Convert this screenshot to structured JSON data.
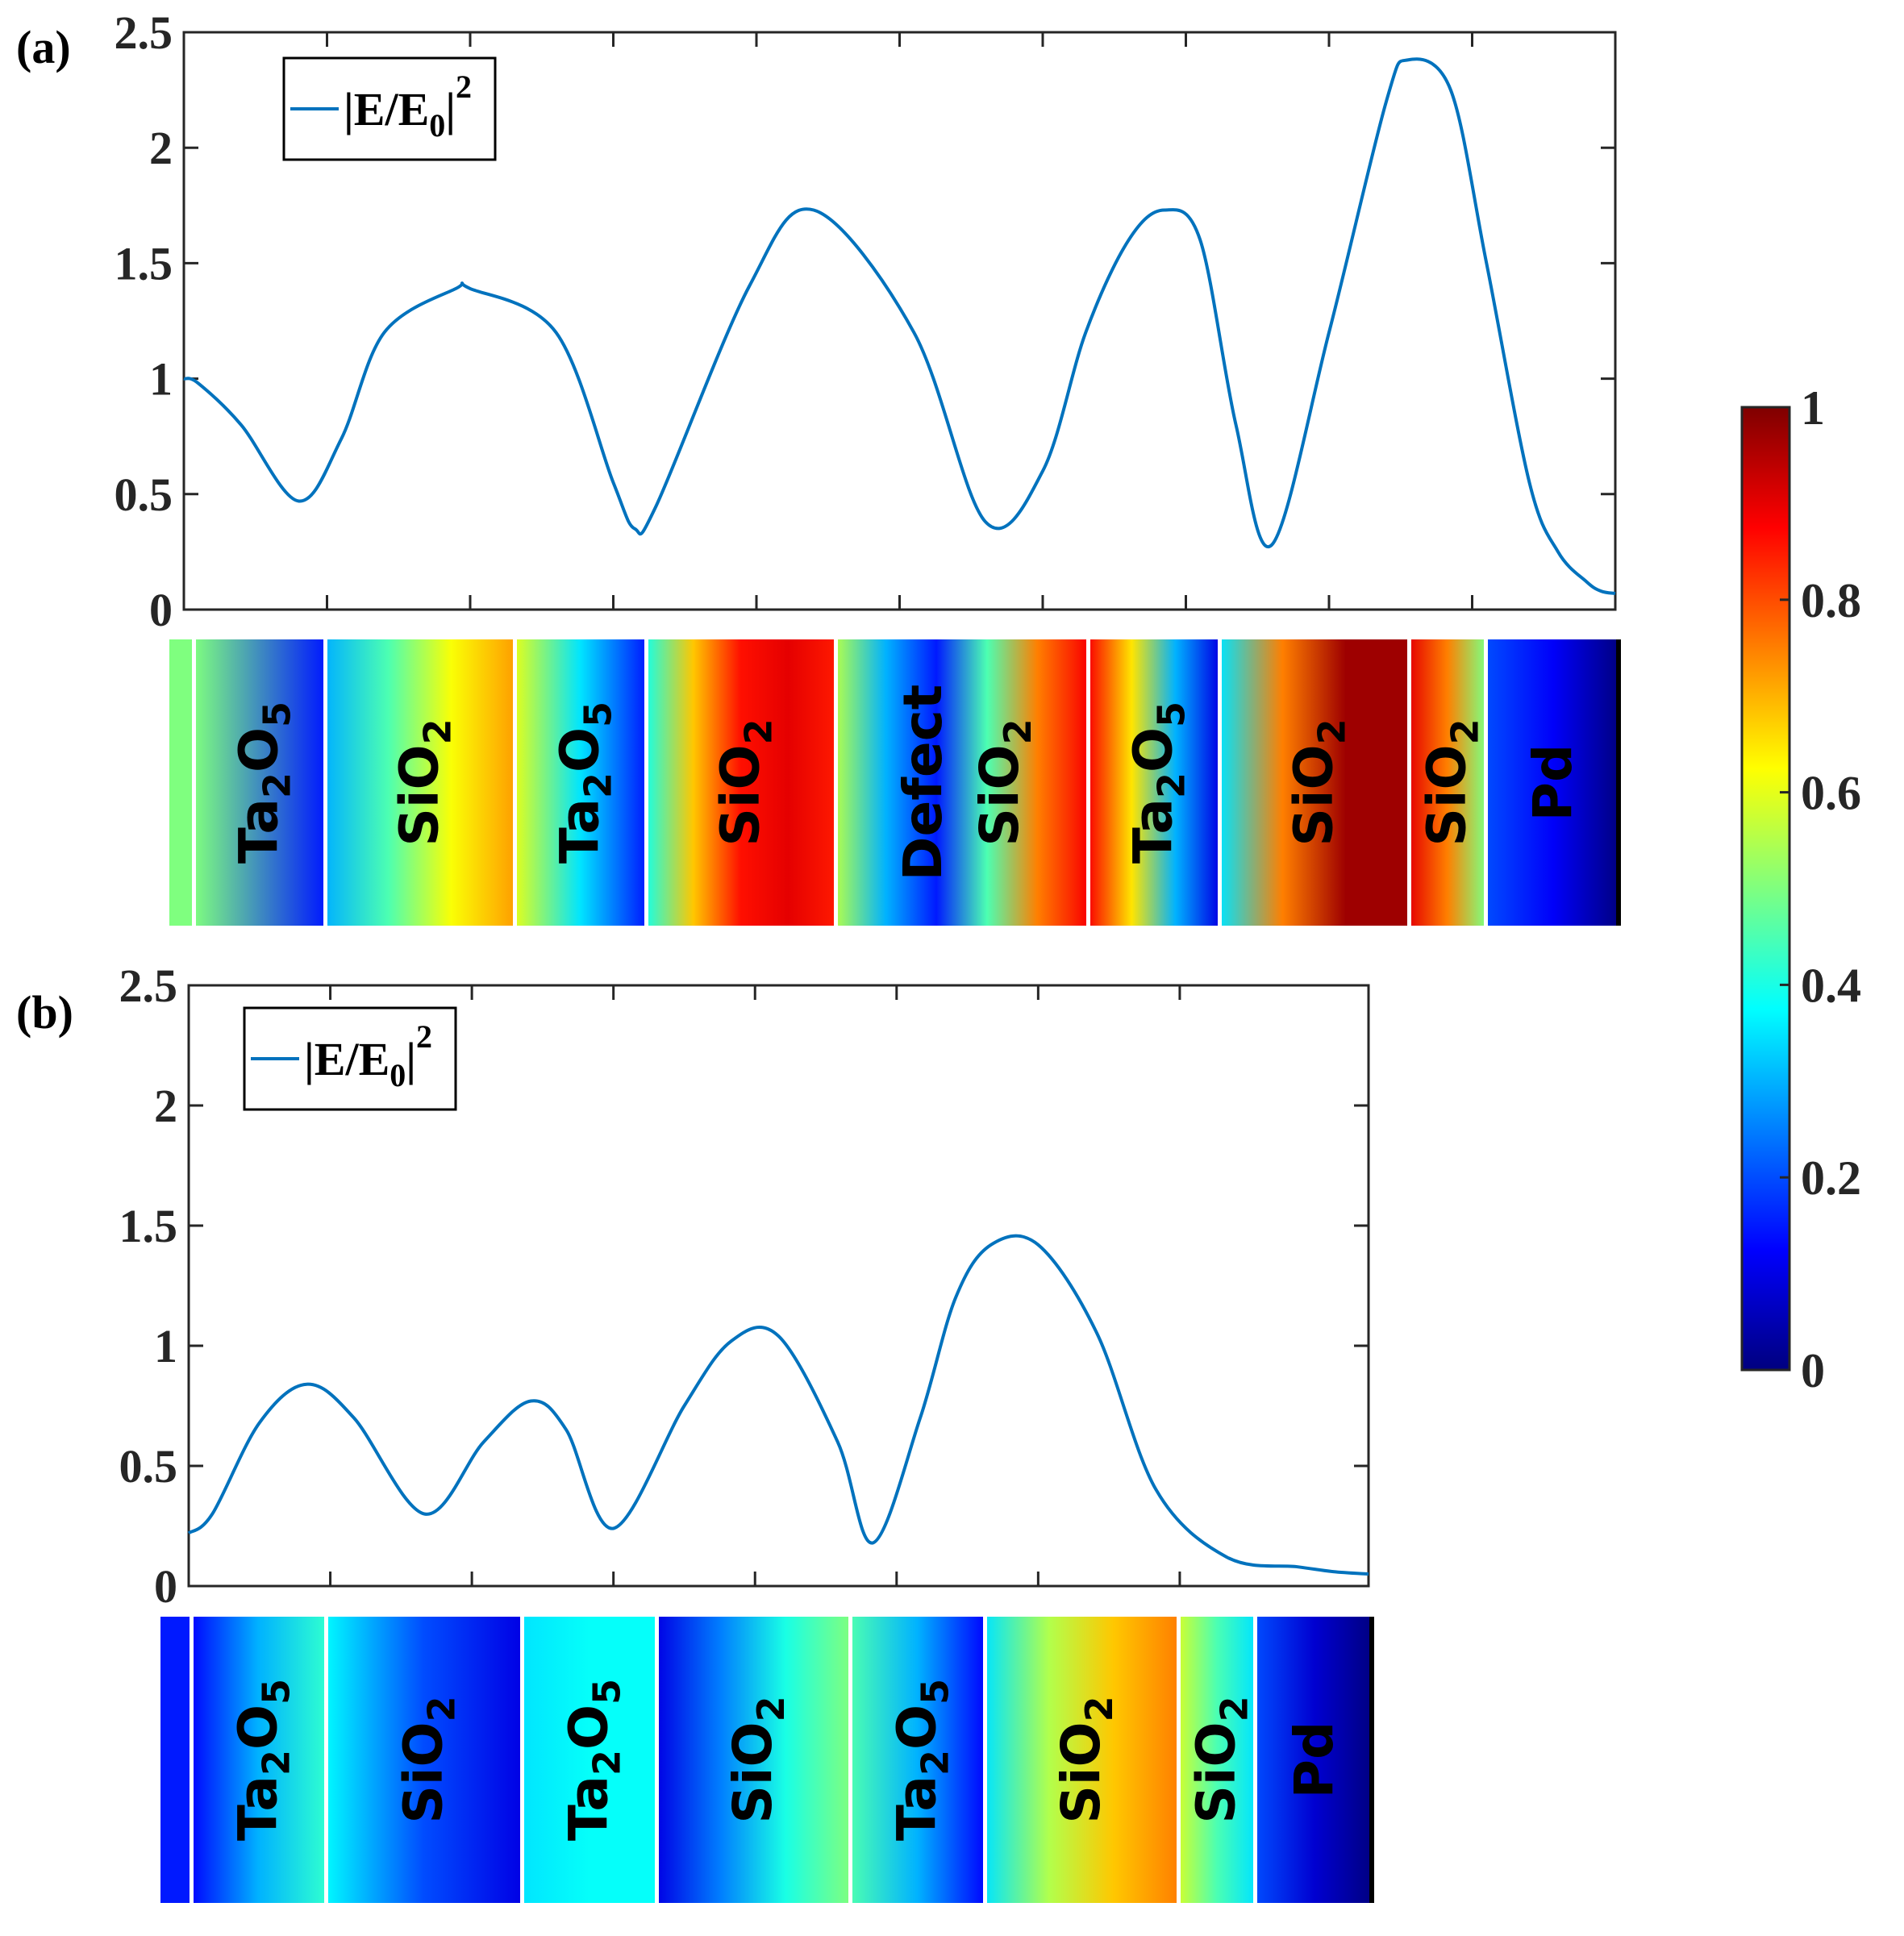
{
  "figure_labels": {
    "a": "(a)",
    "b": "(b)"
  },
  "colormap": {
    "name": "jet",
    "stops": [
      "#00007f",
      "#0000ff",
      "#007fff",
      "#00ffff",
      "#7fff7f",
      "#ffff00",
      "#ff7f00",
      "#ff0000",
      "#7f0000"
    ],
    "ticks": [
      "0",
      "0.2",
      "0.4",
      "0.6",
      "0.8",
      "1"
    ],
    "tick_values": [
      0,
      0.2,
      0.4,
      0.6,
      0.8,
      1
    ]
  },
  "chart_data": [
    {
      "id": "a",
      "type": "line",
      "title": "",
      "xlabel": "",
      "ylabel": "",
      "xlim": [
        0,
        1
      ],
      "ylim": [
        0,
        2.5
      ],
      "yticks": [
        0,
        0.5,
        1,
        1.5,
        2,
        2.5
      ],
      "ytick_labels": [
        "0",
        "0.5",
        "1",
        "1.5",
        "2",
        "2.5"
      ],
      "xticks": [
        0.1,
        0.2,
        0.3,
        0.4,
        0.5,
        0.6,
        0.7,
        0.8,
        0.9
      ],
      "legend": {
        "base": "|E/E",
        "sub": "0",
        "tail": "|",
        "sup": "2",
        "position": "top-left"
      },
      "series": [
        {
          "name": "|E/E0|^2",
          "color": "#0072bd",
          "x": [
            0,
            0.01,
            0.04,
            0.08,
            0.11,
            0.14,
            0.19,
            0.2,
            0.26,
            0.3,
            0.315,
            0.33,
            0.395,
            0.44,
            0.51,
            0.56,
            0.6,
            0.63,
            0.66,
            0.685,
            0.71,
            0.735,
            0.76,
            0.8,
            0.84,
            0.855,
            0.885,
            0.91,
            0.94,
            0.96,
            0.98,
            0.99,
            1.0
          ],
          "y": [
            1.0,
            0.98,
            0.8,
            0.47,
            0.74,
            1.2,
            1.39,
            1.39,
            1.2,
            0.55,
            0.35,
            0.45,
            1.4,
            1.73,
            1.2,
            0.38,
            0.6,
            1.2,
            1.6,
            1.73,
            1.6,
            0.8,
            0.28,
            1.2,
            2.2,
            2.38,
            2.25,
            1.5,
            0.55,
            0.25,
            0.12,
            0.08,
            0.07
          ]
        }
      ],
      "strip": {
        "segments": [
          {
            "label": "",
            "stops": [
              0.5,
              0.5
            ]
          },
          {
            "label": "Ta2O5",
            "stops": [
              0.5,
              0.15
            ]
          },
          {
            "label": "SiO2",
            "stops": [
              0.3,
              0.45,
              0.62,
              0.72
            ]
          },
          {
            "label": "Ta2O5",
            "stops": [
              0.6,
              0.35,
              0.15
            ]
          },
          {
            "label": "SiO2",
            "stops": [
              0.4,
              0.68,
              0.86,
              0.9,
              0.85
            ]
          },
          {
            "label": "Defect SiO2",
            "stops": [
              0.55,
              0.3,
              0.15,
              0.45,
              0.75,
              0.88
            ]
          },
          {
            "label": "Ta2O5",
            "stops": [
              0.88,
              0.65,
              0.3,
              0.1
            ]
          },
          {
            "label": "SiO2",
            "stops": [
              0.35,
              0.75,
              0.97,
              0.97
            ]
          },
          {
            "label": "SiO2",
            "stops": [
              0.9,
              0.75,
              0.5
            ]
          },
          {
            "label": "Pd",
            "stops": [
              0.2,
              0.12,
              0.0
            ]
          }
        ]
      }
    },
    {
      "id": "b",
      "type": "line",
      "title": "",
      "xlabel": "",
      "ylabel": "",
      "xlim": [
        0,
        1
      ],
      "ylim": [
        0,
        2.5
      ],
      "yticks": [
        0,
        0.5,
        1,
        1.5,
        2,
        2.5
      ],
      "ytick_labels": [
        "0",
        "0.5",
        "1",
        "1.5",
        "2",
        "2.5"
      ],
      "xticks": [
        0.12,
        0.24,
        0.36,
        0.48,
        0.6,
        0.72,
        0.84
      ],
      "legend": {
        "base": "|E/E",
        "sub": "0",
        "tail": "|",
        "sup": "2",
        "position": "top-left"
      },
      "series": [
        {
          "name": "|E/E0|^2",
          "color": "#0072bd",
          "x": [
            0,
            0.02,
            0.06,
            0.1,
            0.14,
            0.2,
            0.25,
            0.29,
            0.32,
            0.36,
            0.42,
            0.46,
            0.5,
            0.55,
            0.58,
            0.62,
            0.65,
            0.68,
            0.72,
            0.77,
            0.82,
            0.88,
            0.94,
            0.97,
            1.0
          ],
          "y": [
            0.22,
            0.3,
            0.68,
            0.84,
            0.7,
            0.3,
            0.6,
            0.77,
            0.65,
            0.24,
            0.75,
            1.02,
            1.04,
            0.6,
            0.18,
            0.7,
            1.2,
            1.42,
            1.42,
            1.05,
            0.4,
            0.12,
            0.08,
            0.06,
            0.05
          ]
        }
      ],
      "strip": {
        "segments": [
          {
            "label": "",
            "stops": [
              0.15,
              0.15
            ]
          },
          {
            "label": "Ta2O5",
            "stops": [
              0.13,
              0.3,
              0.42
            ]
          },
          {
            "label": "SiO2",
            "stops": [
              0.37,
              0.2,
              0.1
            ]
          },
          {
            "label": "Ta2O5",
            "stops": [
              0.35,
              0.38,
              0.38
            ]
          },
          {
            "label": "SiO2",
            "stops": [
              0.1,
              0.25,
              0.4,
              0.5
            ]
          },
          {
            "label": "Ta2O5",
            "stops": [
              0.45,
              0.3,
              0.13
            ]
          },
          {
            "label": "SiO2",
            "stops": [
              0.35,
              0.55,
              0.68,
              0.75
            ]
          },
          {
            "label": "SiO2",
            "stops": [
              0.58,
              0.45,
              0.35
            ]
          },
          {
            "label": "Pd",
            "stops": [
              0.2,
              0.08,
              0.0
            ]
          }
        ]
      }
    }
  ]
}
